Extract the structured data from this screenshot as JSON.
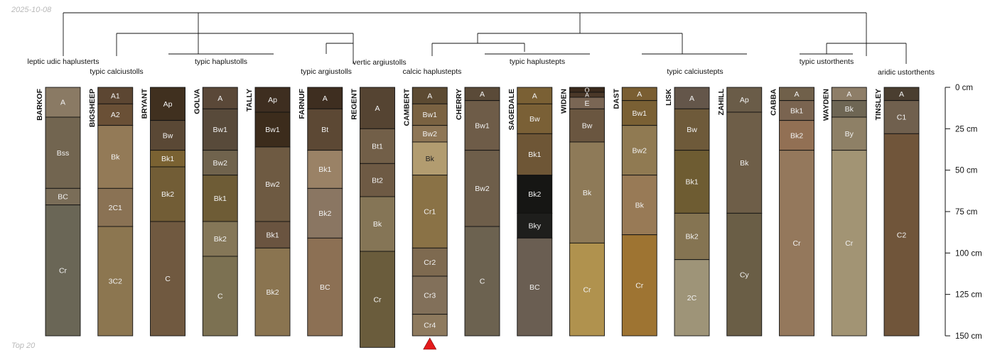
{
  "date_label": "2025-10-08",
  "footer_label": "Top 20",
  "chart_data": {
    "type": "soil-profile-sketch",
    "depth_axis": {
      "unit": "cm",
      "range": [
        0,
        150
      ],
      "ticks": [
        0,
        25,
        50,
        75,
        100,
        125,
        150
      ],
      "tick_labels": [
        "0 cm",
        "25 cm",
        "50 cm",
        "75 cm",
        "100 cm",
        "125 cm",
        "150 cm"
      ]
    },
    "profiles": [
      {
        "name": "BARKOF",
        "bottom_cm": 150,
        "horizons": [
          {
            "name": "A",
            "top": 0,
            "bottom": 18,
            "color": "#8a7a64"
          },
          {
            "name": "Bss",
            "top": 18,
            "bottom": 61,
            "color": "#726550"
          },
          {
            "name": "BC",
            "top": 61,
            "bottom": 71,
            "color": "#7a6d58"
          },
          {
            "name": "Cr",
            "top": 71,
            "bottom": 150,
            "color": "#6a6656"
          }
        ]
      },
      {
        "name": "BIGSHEEP",
        "bottom_cm": 150,
        "horizons": [
          {
            "name": "A1",
            "top": 0,
            "bottom": 10,
            "color": "#5c4632"
          },
          {
            "name": "A2",
            "top": 10,
            "bottom": 23,
            "color": "#6a5036"
          },
          {
            "name": "Bk",
            "top": 23,
            "bottom": 61,
            "color": "#937a57"
          },
          {
            "name": "2C1",
            "top": 61,
            "bottom": 84,
            "color": "#8a7254"
          },
          {
            "name": "3C2",
            "top": 84,
            "bottom": 150,
            "color": "#8c7650"
          }
        ]
      },
      {
        "name": "BRYANT",
        "bottom_cm": 150,
        "horizons": [
          {
            "name": "Ap",
            "top": 0,
            "bottom": 20,
            "color": "#40301f"
          },
          {
            "name": "Bw",
            "top": 20,
            "bottom": 38,
            "color": "#5a4835"
          },
          {
            "name": "Bk1",
            "top": 38,
            "bottom": 48,
            "color": "#7a6232"
          },
          {
            "name": "Bk2",
            "top": 48,
            "bottom": 81,
            "color": "#725d36"
          },
          {
            "name": "C",
            "top": 81,
            "bottom": 150,
            "color": "#705940"
          }
        ]
      },
      {
        "name": "GOLVA",
        "bottom_cm": 150,
        "horizons": [
          {
            "name": "A",
            "top": 0,
            "bottom": 13,
            "color": "#5a4838"
          },
          {
            "name": "Bw1",
            "top": 13,
            "bottom": 38,
            "color": "#584a3a"
          },
          {
            "name": "Bw2",
            "top": 38,
            "bottom": 53,
            "color": "#70634d"
          },
          {
            "name": "Bk1",
            "top": 53,
            "bottom": 81,
            "color": "#6e5c36"
          },
          {
            "name": "Bk2",
            "top": 81,
            "bottom": 102,
            "color": "#857758"
          },
          {
            "name": "C",
            "top": 102,
            "bottom": 150,
            "color": "#7c7152"
          }
        ]
      },
      {
        "name": "TALLY",
        "bottom_cm": 150,
        "horizons": [
          {
            "name": "Ap",
            "top": 0,
            "bottom": 15,
            "color": "#3e2e20"
          },
          {
            "name": "Bw1",
            "top": 15,
            "bottom": 36,
            "color": "#3c2c1c"
          },
          {
            "name": "Bw2",
            "top": 36,
            "bottom": 81,
            "color": "#6e5a42"
          },
          {
            "name": "Bk1",
            "top": 81,
            "bottom": 97,
            "color": "#6a5440"
          },
          {
            "name": "Bk2",
            "top": 97,
            "bottom": 150,
            "color": "#8a7450"
          }
        ]
      },
      {
        "name": "FARNUF",
        "bottom_cm": 150,
        "horizons": [
          {
            "name": "A",
            "top": 0,
            "bottom": 13,
            "color": "#3e2e20"
          },
          {
            "name": "Bt",
            "top": 13,
            "bottom": 38,
            "color": "#5c4834"
          },
          {
            "name": "Bk1",
            "top": 38,
            "bottom": 61,
            "color": "#9a8266"
          },
          {
            "name": "Bk2",
            "top": 61,
            "bottom": 91,
            "color": "#8a7662"
          },
          {
            "name": "BC",
            "top": 91,
            "bottom": 150,
            "color": "#8c7054"
          }
        ]
      },
      {
        "name": "REGENT",
        "bottom_cm": 157,
        "horizons": [
          {
            "name": "A",
            "top": 0,
            "bottom": 25,
            "color": "#554432"
          },
          {
            "name": "Bt1",
            "top": 25,
            "bottom": 46,
            "color": "#725f48"
          },
          {
            "name": "Bt2",
            "top": 46,
            "bottom": 66,
            "color": "#6e5a44"
          },
          {
            "name": "Bk",
            "top": 66,
            "bottom": 99,
            "color": "#857556"
          },
          {
            "name": "Cr",
            "top": 99,
            "bottom": 157,
            "color": "#6a5c3c"
          }
        ]
      },
      {
        "name": "CAMBERT",
        "bottom_cm": 150,
        "horizons": [
          {
            "name": "A",
            "top": 0,
            "bottom": 10,
            "color": "#5c4a32"
          },
          {
            "name": "Bw1",
            "top": 10,
            "bottom": 23,
            "color": "#7a6242"
          },
          {
            "name": "Bw2",
            "top": 23,
            "bottom": 33,
            "color": "#8e7656"
          },
          {
            "name": "Bk",
            "top": 33,
            "bottom": 53,
            "color": "#b29c70"
          },
          {
            "name": "Cr1",
            "top": 53,
            "bottom": 97,
            "color": "#8a7246"
          },
          {
            "name": "Cr2",
            "top": 97,
            "bottom": 114,
            "color": "#7e6a50"
          },
          {
            "name": "Cr3",
            "top": 114,
            "bottom": 137,
            "color": "#82705a"
          },
          {
            "name": "Cr4",
            "top": 137,
            "bottom": 150,
            "color": "#8e7a5e"
          }
        ]
      },
      {
        "name": "CHERRY",
        "bottom_cm": 150,
        "horizons": [
          {
            "name": "A",
            "top": 0,
            "bottom": 8,
            "color": "#5a4a38"
          },
          {
            "name": "Bw1",
            "top": 8,
            "bottom": 38,
            "color": "#6e5c48"
          },
          {
            "name": "Bw2",
            "top": 38,
            "bottom": 84,
            "color": "#6e5e4a"
          },
          {
            "name": "C",
            "top": 84,
            "bottom": 150,
            "color": "#6c6250"
          }
        ]
      },
      {
        "name": "SAGEDALE",
        "bottom_cm": 150,
        "horizons": [
          {
            "name": "A",
            "top": 0,
            "bottom": 10,
            "color": "#7a6034"
          },
          {
            "name": "Bw",
            "top": 10,
            "bottom": 28,
            "color": "#7a6036"
          },
          {
            "name": "Bk1",
            "top": 28,
            "bottom": 53,
            "color": "#6e5636"
          },
          {
            "name": "Bk2",
            "top": 53,
            "bottom": 76,
            "color": "#161614"
          },
          {
            "name": "Bky",
            "top": 76,
            "bottom": 91,
            "color": "#1e1e1c"
          },
          {
            "name": "BC",
            "top": 91,
            "bottom": 150,
            "color": "#6a5e52"
          }
        ]
      },
      {
        "name": "WIDEN",
        "bottom_cm": 150,
        "horizons": [
          {
            "name": "O",
            "top": 0,
            "bottom": 3,
            "color": "#3a2a1c"
          },
          {
            "name": "A",
            "top": 3,
            "bottom": 6,
            "color": "#4a3828"
          },
          {
            "name": "E",
            "top": 6,
            "bottom": 13,
            "color": "#7a6654"
          },
          {
            "name": "Bw",
            "top": 13,
            "bottom": 33,
            "color": "#6a5640"
          },
          {
            "name": "Bk",
            "top": 33,
            "bottom": 94,
            "color": "#8e7a58"
          },
          {
            "name": "Cr",
            "top": 94,
            "bottom": 150,
            "color": "#b0924e"
          }
        ]
      },
      {
        "name": "DAST",
        "bottom_cm": 150,
        "horizons": [
          {
            "name": "A",
            "top": 0,
            "bottom": 8,
            "color": "#7a5e32"
          },
          {
            "name": "Bw1",
            "top": 8,
            "bottom": 23,
            "color": "#7a6034"
          },
          {
            "name": "Bw2",
            "top": 23,
            "bottom": 53,
            "color": "#907a52"
          },
          {
            "name": "Bk",
            "top": 53,
            "bottom": 89,
            "color": "#987a56"
          },
          {
            "name": "Cr",
            "top": 89,
            "bottom": 150,
            "color": "#9e7432"
          }
        ]
      },
      {
        "name": "LISK",
        "bottom_cm": 150,
        "horizons": [
          {
            "name": "A",
            "top": 0,
            "bottom": 13,
            "color": "#64564a"
          },
          {
            "name": "Bw",
            "top": 13,
            "bottom": 38,
            "color": "#6e5a3a"
          },
          {
            "name": "Bk1",
            "top": 38,
            "bottom": 76,
            "color": "#6e5c32"
          },
          {
            "name": "Bk2",
            "top": 76,
            "bottom": 104,
            "color": "#857452"
          },
          {
            "name": "2C",
            "top": 104,
            "bottom": 150,
            "color": "#9e9478"
          }
        ]
      },
      {
        "name": "ZAHILL",
        "bottom_cm": 150,
        "horizons": [
          {
            "name": "Ap",
            "top": 0,
            "bottom": 15,
            "color": "#6a5c48"
          },
          {
            "name": "Bk",
            "top": 15,
            "bottom": 76,
            "color": "#6e5e48"
          },
          {
            "name": "Cy",
            "top": 76,
            "bottom": 150,
            "color": "#6a5e46"
          }
        ]
      },
      {
        "name": "CABBA",
        "bottom_cm": 150,
        "horizons": [
          {
            "name": "A",
            "top": 0,
            "bottom": 8,
            "color": "#70604a"
          },
          {
            "name": "Bk1",
            "top": 8,
            "bottom": 20,
            "color": "#7a6450"
          },
          {
            "name": "Bk2",
            "top": 20,
            "bottom": 38,
            "color": "#927054"
          },
          {
            "name": "Cr",
            "top": 38,
            "bottom": 150,
            "color": "#94785c"
          }
        ]
      },
      {
        "name": "WAYDEN",
        "bottom_cm": 150,
        "horizons": [
          {
            "name": "A",
            "top": 0,
            "bottom": 8,
            "color": "#8e7e68"
          },
          {
            "name": "Bk",
            "top": 8,
            "bottom": 18,
            "color": "#6e6654"
          },
          {
            "name": "By",
            "top": 18,
            "bottom": 38,
            "color": "#8e8066"
          },
          {
            "name": "Cr",
            "top": 38,
            "bottom": 150,
            "color": "#a29474"
          }
        ]
      },
      {
        "name": "TINSLEY",
        "bottom_cm": 150,
        "horizons": [
          {
            "name": "A",
            "top": 0,
            "bottom": 8,
            "color": "#4a3e30"
          },
          {
            "name": "C1",
            "top": 8,
            "bottom": 28,
            "color": "#70604e"
          },
          {
            "name": "C2",
            "top": 28,
            "bottom": 150,
            "color": "#70553a"
          }
        ]
      }
    ],
    "classification_labels": [
      "leptic udic haplusterts",
      "typic calciustolls",
      "typic haplustolls",
      "typic argiustolls",
      "vertic argiustolls",
      "calcic haplustepts",
      "typic haplustepts",
      "typic calciustepts",
      "typic ustorthents",
      "aridic ustorthents"
    ],
    "marked_profile": "CAMBERT",
    "marker_color": "#e41a1c"
  }
}
